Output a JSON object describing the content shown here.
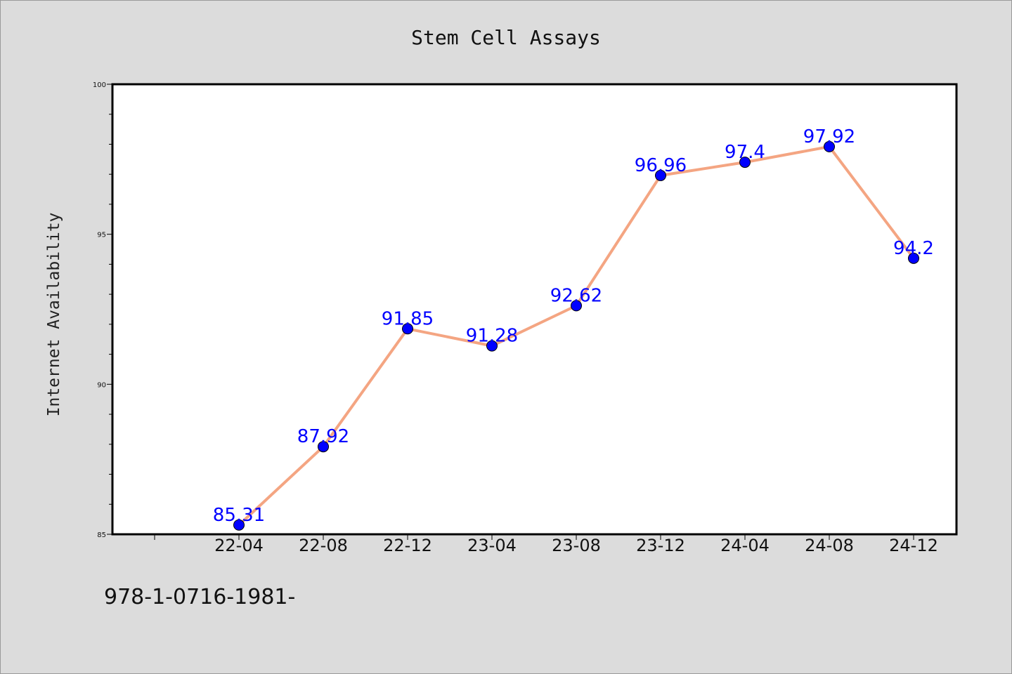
{
  "chart_data": {
    "type": "line",
    "title": "Stem Cell Assays",
    "xlabel": "",
    "ylabel": "Internet Availability",
    "categories": [
      "22-04",
      "22-08",
      "22-12",
      "23-04",
      "23-08",
      "23-12",
      "24-04",
      "24-08",
      "24-12"
    ],
    "series": [
      {
        "values": [
          85.31,
          87.92,
          91.85,
          91.28,
          92.62,
          96.96,
          97.4,
          97.92,
          94.2
        ],
        "labels": [
          "85.31",
          "87.92",
          "91.85",
          "91.28",
          "92.62",
          "96.96",
          "97.4",
          "97.92",
          "94.2"
        ]
      }
    ],
    "ylim": [
      85,
      100
    ],
    "yticks": [
      85,
      90,
      95,
      100
    ],
    "grid": false,
    "legend": "none",
    "colors": {
      "line": "#f4a582",
      "marker": "#0000ff",
      "label": "#0000ff",
      "background": "#dcdcdc",
      "plot": "#ffffff"
    }
  },
  "footnote": "978-1-0716-1981-"
}
